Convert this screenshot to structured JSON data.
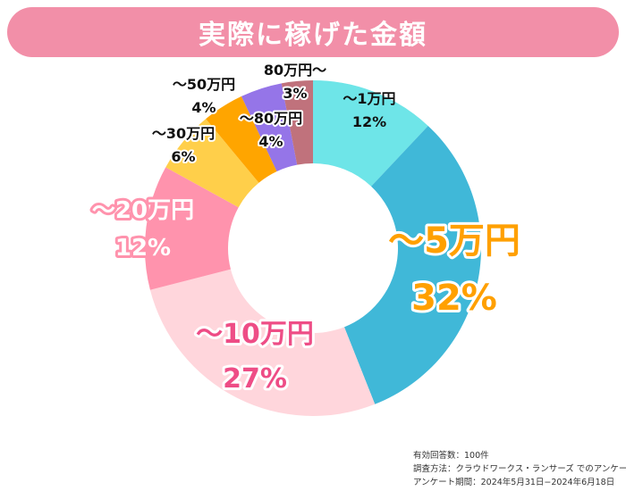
{
  "title": "実際に稼げた金額",
  "chart_data": {
    "type": "pie",
    "subtype": "donut",
    "title": "実際に稼げた金額",
    "slices": [
      {
        "label": "〜1万円",
        "value": 12,
        "value_label": "12%",
        "color": "#6ee5e8"
      },
      {
        "label": "〜5万円",
        "value": 32,
        "value_label": "32%",
        "color": "#40b8d8"
      },
      {
        "label": "〜10万円",
        "value": 27,
        "value_label": "27%",
        "color": "#ffd6dc"
      },
      {
        "label": "〜20万円",
        "value": 12,
        "value_label": "12%",
        "color": "#ff93ad"
      },
      {
        "label": "〜30万円",
        "value": 6,
        "value_label": "6%",
        "color": "#ffcf4a"
      },
      {
        "label": "〜50万円",
        "value": 4,
        "value_label": "4%",
        "color": "#ffa500"
      },
      {
        "label": "〜80万円",
        "value": 4,
        "value_label": "4%",
        "color": "#9575e8"
      },
      {
        "label": "80万円〜",
        "value": 3,
        "value_label": "3%",
        "color": "#c0727c"
      }
    ]
  },
  "footer": {
    "respondents": "有効回答数：100件",
    "method": "調査方法：クラウドワークス・ランサーズ でのアンケート",
    "period": "アンケート期間：2024年5月31日−2024年6月18日"
  }
}
